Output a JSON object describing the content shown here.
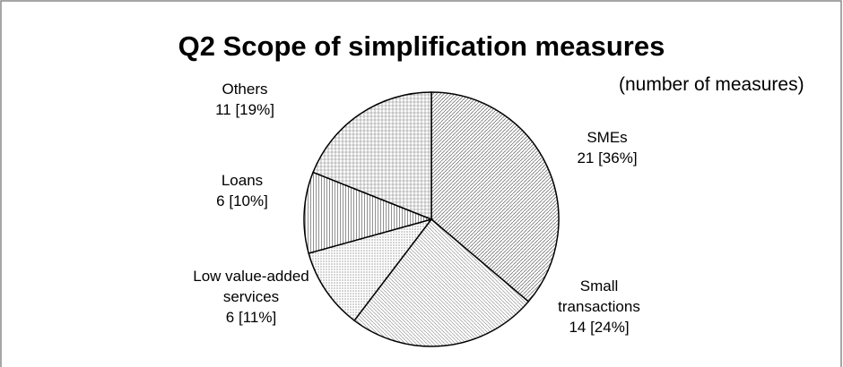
{
  "chart_data": {
    "type": "pie",
    "title": "Q2 Scope of simplification measures",
    "subtitle": "(number of measures)",
    "categories": [
      "SMEs",
      "Small transactions",
      "Low value-added services",
      "Loans",
      "Others"
    ],
    "values": [
      21,
      14,
      6,
      6,
      11
    ],
    "value_labels": [
      "21 [36%]",
      "14 [24%]",
      "6 [11%]",
      "6 [10%]",
      "11 [19%]"
    ]
  }
}
